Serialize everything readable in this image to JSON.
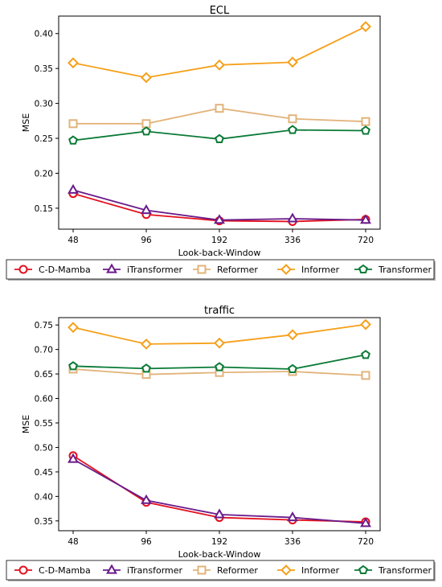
{
  "chart_data": [
    {
      "type": "line",
      "title": "ECL",
      "xlabel": "Look-back-Window",
      "ylabel": "MSE",
      "categories": [
        "48",
        "96",
        "192",
        "336",
        "720"
      ],
      "yticks": [
        0.15,
        0.2,
        0.25,
        0.3,
        0.35,
        0.4
      ],
      "ytick_labels": [
        "0.15",
        "0.20",
        "0.25",
        "0.30",
        "0.35",
        "0.40"
      ],
      "ylim": [
        0.12,
        0.425
      ],
      "grid": false,
      "legend": "bottom",
      "series": [
        {
          "name": "C-D-Mamba",
          "color": "#e3101e",
          "marker": "circle",
          "values": [
            0.171,
            0.141,
            0.132,
            0.131,
            0.134
          ]
        },
        {
          "name": "iTransformer",
          "color": "#6a1b8a",
          "marker": "triangle",
          "values": [
            0.176,
            0.147,
            0.133,
            0.135,
            0.133
          ]
        },
        {
          "name": "Reformer",
          "color": "#e2b37a",
          "marker": "square",
          "values": [
            0.271,
            0.271,
            0.293,
            0.278,
            0.274
          ]
        },
        {
          "name": "Informer",
          "color": "#f5a01a",
          "marker": "diamond",
          "values": [
            0.358,
            0.337,
            0.355,
            0.359,
            0.41
          ]
        },
        {
          "name": "Transformer",
          "color": "#0a7a36",
          "marker": "pentagon",
          "values": [
            0.247,
            0.26,
            0.249,
            0.262,
            0.261
          ]
        }
      ]
    },
    {
      "type": "line",
      "title": "traffic",
      "xlabel": "Look-back-Window",
      "ylabel": "MSE",
      "categories": [
        "48",
        "96",
        "192",
        "336",
        "720"
      ],
      "yticks": [
        0.35,
        0.4,
        0.45,
        0.5,
        0.55,
        0.6,
        0.65,
        0.7,
        0.75
      ],
      "ytick_labels": [
        "0.35",
        "0.40",
        "0.45",
        "0.50",
        "0.55",
        "0.60",
        "0.65",
        "0.70",
        "0.75"
      ],
      "ylim": [
        0.33,
        0.765
      ],
      "grid": false,
      "legend": "bottom",
      "series": [
        {
          "name": "C-D-Mamba",
          "color": "#e3101e",
          "marker": "circle",
          "values": [
            0.483,
            0.388,
            0.357,
            0.352,
            0.348
          ]
        },
        {
          "name": "iTransformer",
          "color": "#6a1b8a",
          "marker": "triangle",
          "values": [
            0.476,
            0.392,
            0.363,
            0.357,
            0.345
          ]
        },
        {
          "name": "Reformer",
          "color": "#e2b37a",
          "marker": "square",
          "values": [
            0.66,
            0.649,
            0.653,
            0.655,
            0.647
          ]
        },
        {
          "name": "Informer",
          "color": "#f5a01a",
          "marker": "diamond",
          "values": [
            0.745,
            0.711,
            0.713,
            0.73,
            0.751
          ]
        },
        {
          "name": "Transformer",
          "color": "#0a7a36",
          "marker": "pentagon",
          "values": [
            0.666,
            0.661,
            0.664,
            0.66,
            0.689
          ]
        }
      ]
    }
  ]
}
